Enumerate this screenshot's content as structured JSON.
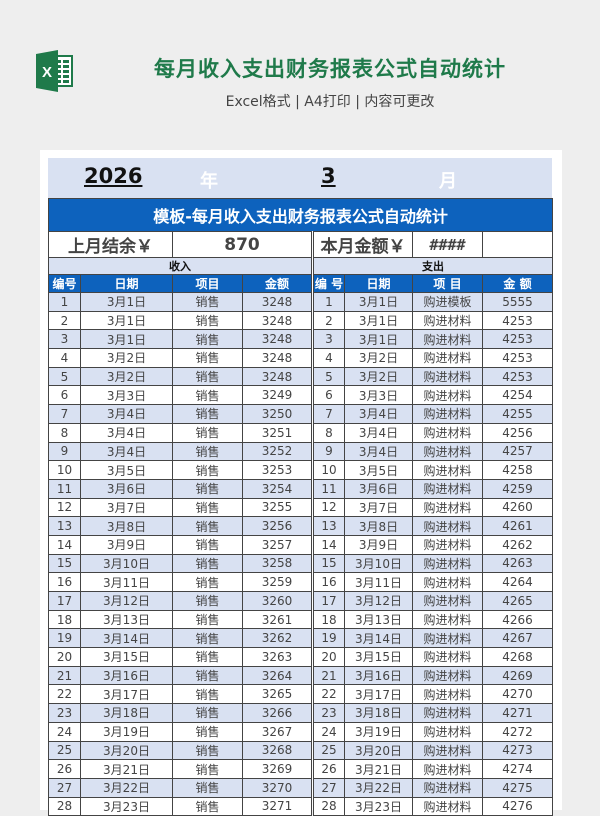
{
  "header": {
    "icon": "excel-icon",
    "title": "每月收入支出财务报表公式自动统计",
    "subtitle": "Excel格式 | A4打印 | 内容可更改"
  },
  "period": {
    "year": "2026",
    "year_label": "年",
    "month": "3",
    "month_label": "月"
  },
  "sheet": {
    "title": "模板-每月收入支出财务报表公式自动统计",
    "prev_balance_label": "上月结余￥",
    "prev_balance_value": "870",
    "current_amount_label": "本月金额￥",
    "current_amount_value": "####",
    "current_amount_extra": "",
    "income_label": "收入",
    "expense_label": "支出",
    "income_columns": [
      "编号",
      "日期",
      "项目",
      "金额"
    ],
    "expense_columns": [
      "编 号",
      "日期",
      "项 目",
      "金 额"
    ],
    "rows": [
      {
        "in_no": "1",
        "in_date": "3月1日",
        "in_item": "销售",
        "in_amt": "3248",
        "ex_no": "1",
        "ex_date": "3月1日",
        "ex_item": "购进模板",
        "ex_amt": "5555"
      },
      {
        "in_no": "2",
        "in_date": "3月1日",
        "in_item": "销售",
        "in_amt": "3248",
        "ex_no": "2",
        "ex_date": "3月1日",
        "ex_item": "购进材料",
        "ex_amt": "4253"
      },
      {
        "in_no": "3",
        "in_date": "3月1日",
        "in_item": "销售",
        "in_amt": "3248",
        "ex_no": "3",
        "ex_date": "3月1日",
        "ex_item": "购进材料",
        "ex_amt": "4253"
      },
      {
        "in_no": "4",
        "in_date": "3月2日",
        "in_item": "销售",
        "in_amt": "3248",
        "ex_no": "4",
        "ex_date": "3月2日",
        "ex_item": "购进材料",
        "ex_amt": "4253"
      },
      {
        "in_no": "5",
        "in_date": "3月2日",
        "in_item": "销售",
        "in_amt": "3248",
        "ex_no": "5",
        "ex_date": "3月2日",
        "ex_item": "购进材料",
        "ex_amt": "4253"
      },
      {
        "in_no": "6",
        "in_date": "3月3日",
        "in_item": "销售",
        "in_amt": "3249",
        "ex_no": "6",
        "ex_date": "3月3日",
        "ex_item": "购进材料",
        "ex_amt": "4254"
      },
      {
        "in_no": "7",
        "in_date": "3月4日",
        "in_item": "销售",
        "in_amt": "3250",
        "ex_no": "7",
        "ex_date": "3月4日",
        "ex_item": "购进材料",
        "ex_amt": "4255"
      },
      {
        "in_no": "8",
        "in_date": "3月4日",
        "in_item": "销售",
        "in_amt": "3251",
        "ex_no": "8",
        "ex_date": "3月4日",
        "ex_item": "购进材料",
        "ex_amt": "4256"
      },
      {
        "in_no": "9",
        "in_date": "3月4日",
        "in_item": "销售",
        "in_amt": "3252",
        "ex_no": "9",
        "ex_date": "3月4日",
        "ex_item": "购进材料",
        "ex_amt": "4257"
      },
      {
        "in_no": "10",
        "in_date": "3月5日",
        "in_item": "销售",
        "in_amt": "3253",
        "ex_no": "10",
        "ex_date": "3月5日",
        "ex_item": "购进材料",
        "ex_amt": "4258"
      },
      {
        "in_no": "11",
        "in_date": "3月6日",
        "in_item": "销售",
        "in_amt": "3254",
        "ex_no": "11",
        "ex_date": "3月6日",
        "ex_item": "购进材料",
        "ex_amt": "4259"
      },
      {
        "in_no": "12",
        "in_date": "3月7日",
        "in_item": "销售",
        "in_amt": "3255",
        "ex_no": "12",
        "ex_date": "3月7日",
        "ex_item": "购进材料",
        "ex_amt": "4260"
      },
      {
        "in_no": "13",
        "in_date": "3月8日",
        "in_item": "销售",
        "in_amt": "3256",
        "ex_no": "13",
        "ex_date": "3月8日",
        "ex_item": "购进材料",
        "ex_amt": "4261"
      },
      {
        "in_no": "14",
        "in_date": "3月9日",
        "in_item": "销售",
        "in_amt": "3257",
        "ex_no": "14",
        "ex_date": "3月9日",
        "ex_item": "购进材料",
        "ex_amt": "4262"
      },
      {
        "in_no": "15",
        "in_date": "3月10日",
        "in_item": "销售",
        "in_amt": "3258",
        "ex_no": "15",
        "ex_date": "3月10日",
        "ex_item": "购进材料",
        "ex_amt": "4263"
      },
      {
        "in_no": "16",
        "in_date": "3月11日",
        "in_item": "销售",
        "in_amt": "3259",
        "ex_no": "16",
        "ex_date": "3月11日",
        "ex_item": "购进材料",
        "ex_amt": "4264"
      },
      {
        "in_no": "17",
        "in_date": "3月12日",
        "in_item": "销售",
        "in_amt": "3260",
        "ex_no": "17",
        "ex_date": "3月12日",
        "ex_item": "购进材料",
        "ex_amt": "4265"
      },
      {
        "in_no": "18",
        "in_date": "3月13日",
        "in_item": "销售",
        "in_amt": "3261",
        "ex_no": "18",
        "ex_date": "3月13日",
        "ex_item": "购进材料",
        "ex_amt": "4266"
      },
      {
        "in_no": "19",
        "in_date": "3月14日",
        "in_item": "销售",
        "in_amt": "3262",
        "ex_no": "19",
        "ex_date": "3月14日",
        "ex_item": "购进材料",
        "ex_amt": "4267"
      },
      {
        "in_no": "20",
        "in_date": "3月15日",
        "in_item": "销售",
        "in_amt": "3263",
        "ex_no": "20",
        "ex_date": "3月15日",
        "ex_item": "购进材料",
        "ex_amt": "4268"
      },
      {
        "in_no": "21",
        "in_date": "3月16日",
        "in_item": "销售",
        "in_amt": "3264",
        "ex_no": "21",
        "ex_date": "3月16日",
        "ex_item": "购进材料",
        "ex_amt": "4269"
      },
      {
        "in_no": "22",
        "in_date": "3月17日",
        "in_item": "销售",
        "in_amt": "3265",
        "ex_no": "22",
        "ex_date": "3月17日",
        "ex_item": "购进材料",
        "ex_amt": "4270"
      },
      {
        "in_no": "23",
        "in_date": "3月18日",
        "in_item": "销售",
        "in_amt": "3266",
        "ex_no": "23",
        "ex_date": "3月18日",
        "ex_item": "购进材料",
        "ex_amt": "4271"
      },
      {
        "in_no": "24",
        "in_date": "3月19日",
        "in_item": "销售",
        "in_amt": "3267",
        "ex_no": "24",
        "ex_date": "3月19日",
        "ex_item": "购进材料",
        "ex_amt": "4272"
      },
      {
        "in_no": "25",
        "in_date": "3月20日",
        "in_item": "销售",
        "in_amt": "3268",
        "ex_no": "25",
        "ex_date": "3月20日",
        "ex_item": "购进材料",
        "ex_amt": "4273"
      },
      {
        "in_no": "26",
        "in_date": "3月21日",
        "in_item": "销售",
        "in_amt": "3269",
        "ex_no": "26",
        "ex_date": "3月21日",
        "ex_item": "购进材料",
        "ex_amt": "4274"
      },
      {
        "in_no": "27",
        "in_date": "3月22日",
        "in_item": "销售",
        "in_amt": "3270",
        "ex_no": "27",
        "ex_date": "3月22日",
        "ex_item": "购进材料",
        "ex_amt": "4275"
      },
      {
        "in_no": "28",
        "in_date": "3月23日",
        "in_item": "销售",
        "in_amt": "3271",
        "ex_no": "28",
        "ex_date": "3月23日",
        "ex_item": "购进材料",
        "ex_amt": "4276"
      }
    ]
  },
  "colors": {
    "brand_green": "#1f7a4a",
    "header_blue": "#0d62bd",
    "band_blue": "#d9e1f2",
    "page_bg": "#eeeeee"
  }
}
